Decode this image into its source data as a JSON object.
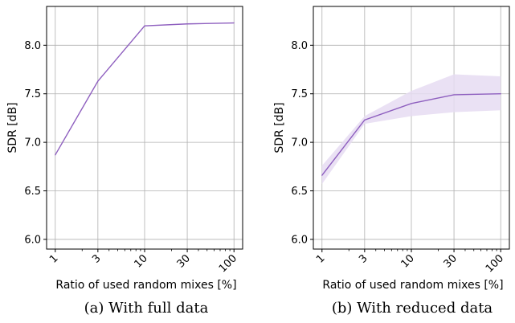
{
  "chart_data": [
    {
      "type": "line",
      "caption": "(a) With full data",
      "xlabel": "Ratio of used random mixes [%]",
      "ylabel": "SDR [dB]",
      "x_scale": "log",
      "x": [
        1,
        3,
        10,
        30,
        100
      ],
      "xticks": [
        "1",
        "3",
        "10",
        "30",
        "100"
      ],
      "xlim": [
        0.8,
        125
      ],
      "ylim": [
        5.9,
        8.4
      ],
      "yticks": [
        "6.0",
        "6.5",
        "7.0",
        "7.5",
        "8.0"
      ],
      "grid": true,
      "series": [
        {
          "color": "#8e5fbf",
          "values": [
            6.87,
            7.63,
            8.2,
            8.22,
            8.23
          ]
        }
      ]
    },
    {
      "type": "line",
      "caption": "(b) With reduced data",
      "xlabel": "Ratio of used random mixes [%]",
      "ylabel": "SDR [dB]",
      "x_scale": "log",
      "x": [
        1,
        3,
        10,
        30,
        100
      ],
      "xticks": [
        "1",
        "3",
        "10",
        "30",
        "100"
      ],
      "xlim": [
        0.8,
        125
      ],
      "ylim": [
        5.9,
        8.4
      ],
      "yticks": [
        "6.0",
        "6.5",
        "7.0",
        "7.5",
        "8.0"
      ],
      "grid": true,
      "series": [
        {
          "color": "#8e5fbf",
          "band_color": "#e6dcf2",
          "values": [
            6.66,
            7.23,
            7.4,
            7.49,
            7.5
          ],
          "lower": [
            6.57,
            7.19,
            7.27,
            7.31,
            7.33
          ],
          "upper": [
            6.76,
            7.27,
            7.53,
            7.7,
            7.68
          ]
        }
      ]
    }
  ]
}
